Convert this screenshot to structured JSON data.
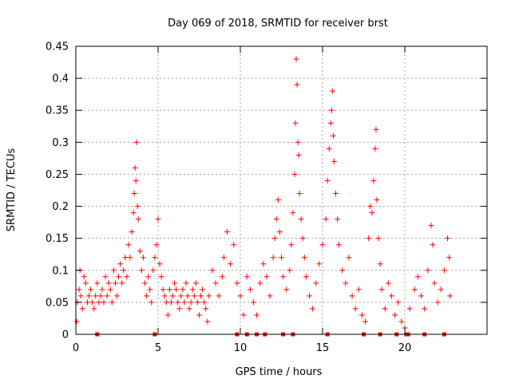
{
  "chart_data": {
    "type": "scatter",
    "title": "Day 069 of 2018, SRMTID for receiver brst",
    "xlabel": "GPS time / hours",
    "ylabel": "SRMTID / TECUs",
    "xlim": [
      0,
      25
    ],
    "ylim": [
      0,
      0.45
    ],
    "grid": true,
    "x_ticks": [
      0,
      5,
      10,
      15,
      20
    ],
    "x_tick_labels": [
      "0",
      "5",
      "10",
      "15",
      "20"
    ],
    "y_ticks": [
      0,
      0.05,
      0.1,
      0.15,
      0.2,
      0.25,
      0.3,
      0.35,
      0.4,
      0.45
    ],
    "y_tick_labels": [
      "0",
      "0.05",
      "0.1",
      "0.15",
      "0.2",
      "0.25",
      "0.3",
      "0.35",
      "0.4",
      "0.45"
    ],
    "marker": "plus",
    "marker_color": "#ff0000",
    "series": [
      {
        "name": "SRMTID",
        "points": [
          [
            0.05,
            0.02
          ],
          [
            0.1,
            0.05
          ],
          [
            0.2,
            0.07
          ],
          [
            0.25,
            0.1
          ],
          [
            0.3,
            0.06
          ],
          [
            0.4,
            0.04
          ],
          [
            0.5,
            0.09
          ],
          [
            0.6,
            0.08
          ],
          [
            0.7,
            0.05
          ],
          [
            0.8,
            0.06
          ],
          [
            0.9,
            0.07
          ],
          [
            1.0,
            0.05
          ],
          [
            1.1,
            0.04
          ],
          [
            1.2,
            0.06
          ],
          [
            1.3,
            0.08
          ],
          [
            1.4,
            0.05
          ],
          [
            1.5,
            0.06
          ],
          [
            1.6,
            0.07
          ],
          [
            1.7,
            0.05
          ],
          [
            1.8,
            0.09
          ],
          [
            1.9,
            0.06
          ],
          [
            2.0,
            0.08
          ],
          [
            2.1,
            0.07
          ],
          [
            2.2,
            0.05
          ],
          [
            2.3,
            0.1
          ],
          [
            2.4,
            0.08
          ],
          [
            2.5,
            0.06
          ],
          [
            2.6,
            0.09
          ],
          [
            2.7,
            0.11
          ],
          [
            2.8,
            0.08
          ],
          [
            2.9,
            0.1
          ],
          [
            3.0,
            0.12
          ],
          [
            3.1,
            0.09
          ],
          [
            3.2,
            0.14
          ],
          [
            3.3,
            0.12
          ],
          [
            3.4,
            0.16
          ],
          [
            3.5,
            0.19
          ],
          [
            3.55,
            0.22
          ],
          [
            3.6,
            0.26
          ],
          [
            3.65,
            0.24
          ],
          [
            3.7,
            0.3
          ],
          [
            3.75,
            0.2
          ],
          [
            3.8,
            0.18
          ],
          [
            3.9,
            0.13
          ],
          [
            4.0,
            0.1
          ],
          [
            4.1,
            0.12
          ],
          [
            4.2,
            0.08
          ],
          [
            4.3,
            0.06
          ],
          [
            4.4,
            0.09
          ],
          [
            4.5,
            0.07
          ],
          [
            4.6,
            0.05
          ],
          [
            4.7,
            0.1
          ],
          [
            4.8,
            0.12
          ],
          [
            4.9,
            0.14
          ],
          [
            5.0,
            0.18
          ],
          [
            5.1,
            0.11
          ],
          [
            5.2,
            0.09
          ],
          [
            5.3,
            0.07
          ],
          [
            5.4,
            0.06
          ],
          [
            5.5,
            0.05
          ],
          [
            5.6,
            0.03
          ],
          [
            5.7,
            0.07
          ],
          [
            5.8,
            0.05
          ],
          [
            5.9,
            0.06
          ],
          [
            6.0,
            0.08
          ],
          [
            6.1,
            0.07
          ],
          [
            6.2,
            0.05
          ],
          [
            6.3,
            0.04
          ],
          [
            6.4,
            0.06
          ],
          [
            6.5,
            0.07
          ],
          [
            6.6,
            0.05
          ],
          [
            6.7,
            0.08
          ],
          [
            6.8,
            0.06
          ],
          [
            6.9,
            0.04
          ],
          [
            7.0,
            0.05
          ],
          [
            7.1,
            0.07
          ],
          [
            7.2,
            0.06
          ],
          [
            7.3,
            0.08
          ],
          [
            7.4,
            0.05
          ],
          [
            7.5,
            0.03
          ],
          [
            7.6,
            0.06
          ],
          [
            7.7,
            0.07
          ],
          [
            7.8,
            0.05
          ],
          [
            7.9,
            0.04
          ],
          [
            8.0,
            0.02
          ],
          [
            8.1,
            0.06
          ],
          [
            8.3,
            0.1
          ],
          [
            8.5,
            0.08
          ],
          [
            8.7,
            0.06
          ],
          [
            8.9,
            0.09
          ],
          [
            9.0,
            0.12
          ],
          [
            9.2,
            0.16
          ],
          [
            9.4,
            0.11
          ],
          [
            9.6,
            0.14
          ],
          [
            9.8,
            0.08
          ],
          [
            10.0,
            0.06
          ],
          [
            10.2,
            0.03
          ],
          [
            10.4,
            0.09
          ],
          [
            10.6,
            0.07
          ],
          [
            10.8,
            0.05
          ],
          [
            11.0,
            0.03
          ],
          [
            11.2,
            0.08
          ],
          [
            11.4,
            0.11
          ],
          [
            11.6,
            0.09
          ],
          [
            11.8,
            0.06
          ],
          [
            12.0,
            0.12
          ],
          [
            12.1,
            0.15
          ],
          [
            12.2,
            0.18
          ],
          [
            12.3,
            0.21
          ],
          [
            12.4,
            0.16
          ],
          [
            12.5,
            0.12
          ],
          [
            12.6,
            0.09
          ],
          [
            12.8,
            0.07
          ],
          [
            13.0,
            0.1
          ],
          [
            13.1,
            0.14
          ],
          [
            13.2,
            0.19
          ],
          [
            13.3,
            0.25
          ],
          [
            13.35,
            0.33
          ],
          [
            13.4,
            0.43
          ],
          [
            13.45,
            0.39
          ],
          [
            13.5,
            0.3
          ],
          [
            13.55,
            0.28
          ],
          [
            13.6,
            0.22
          ],
          [
            13.7,
            0.18
          ],
          [
            13.8,
            0.15
          ],
          [
            13.9,
            0.12
          ],
          [
            14.0,
            0.09
          ],
          [
            14.2,
            0.06
          ],
          [
            14.4,
            0.04
          ],
          [
            14.6,
            0.08
          ],
          [
            14.8,
            0.11
          ],
          [
            15.0,
            0.14
          ],
          [
            15.2,
            0.18
          ],
          [
            15.3,
            0.24
          ],
          [
            15.4,
            0.29
          ],
          [
            15.5,
            0.33
          ],
          [
            15.55,
            0.35
          ],
          [
            15.6,
            0.38
          ],
          [
            15.65,
            0.31
          ],
          [
            15.7,
            0.27
          ],
          [
            15.8,
            0.22
          ],
          [
            15.9,
            0.18
          ],
          [
            16.0,
            0.14
          ],
          [
            16.2,
            0.1
          ],
          [
            16.4,
            0.08
          ],
          [
            16.6,
            0.12
          ],
          [
            16.8,
            0.06
          ],
          [
            17.0,
            0.04
          ],
          [
            17.2,
            0.07
          ],
          [
            17.4,
            0.03
          ],
          [
            17.6,
            0.02
          ],
          [
            17.8,
            0.15
          ],
          [
            17.9,
            0.2
          ],
          [
            18.0,
            0.19
          ],
          [
            18.1,
            0.24
          ],
          [
            18.2,
            0.29
          ],
          [
            18.25,
            0.32
          ],
          [
            18.3,
            0.21
          ],
          [
            18.4,
            0.15
          ],
          [
            18.5,
            0.11
          ],
          [
            18.6,
            0.07
          ],
          [
            18.8,
            0.04
          ],
          [
            19.0,
            0.08
          ],
          [
            19.2,
            0.06
          ],
          [
            19.4,
            0.03
          ],
          [
            19.6,
            0.05
          ],
          [
            19.8,
            0.02
          ],
          [
            20.0,
            0.01
          ],
          [
            20.3,
            0.04
          ],
          [
            20.6,
            0.07
          ],
          [
            20.8,
            0.09
          ],
          [
            21.0,
            0.06
          ],
          [
            21.2,
            0.04
          ],
          [
            21.4,
            0.1
          ],
          [
            21.6,
            0.17
          ],
          [
            21.7,
            0.14
          ],
          [
            21.8,
            0.08
          ],
          [
            22.0,
            0.05
          ],
          [
            22.2,
            0.07
          ],
          [
            22.4,
            0.1
          ],
          [
            22.6,
            0.15
          ],
          [
            22.7,
            0.12
          ],
          [
            22.75,
            0.06
          ]
        ]
      }
    ],
    "baseline_markers": [
      1.3,
      4.8,
      9.8,
      10.4,
      11.0,
      11.5,
      12.6,
      13.2,
      15.3,
      17.5,
      18.5,
      19.5,
      20.1,
      20.2,
      21.2,
      22.4
    ]
  }
}
